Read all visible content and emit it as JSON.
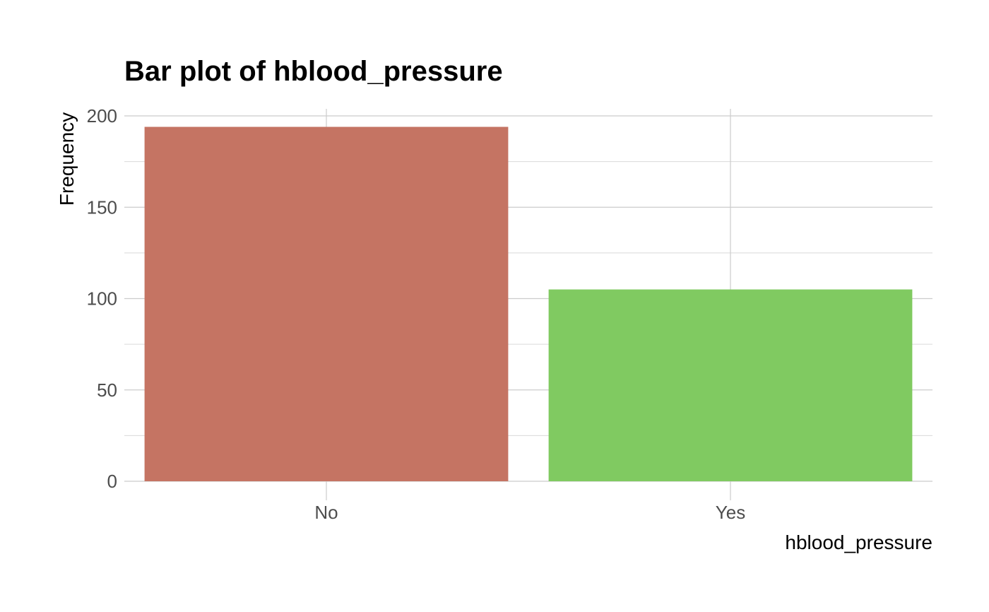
{
  "chart_data": {
    "type": "bar",
    "title": "Bar plot of hblood_pressure",
    "xlabel": "hblood_pressure",
    "ylabel": "Frequency",
    "categories": [
      "No",
      "Yes"
    ],
    "values": [
      194,
      105
    ],
    "colors": [
      "#C57463",
      "#80CA61"
    ],
    "ylim": [
      0,
      200
    ],
    "yticks": [
      0,
      50,
      100,
      150,
      200
    ],
    "grid": true,
    "legend": "none"
  }
}
